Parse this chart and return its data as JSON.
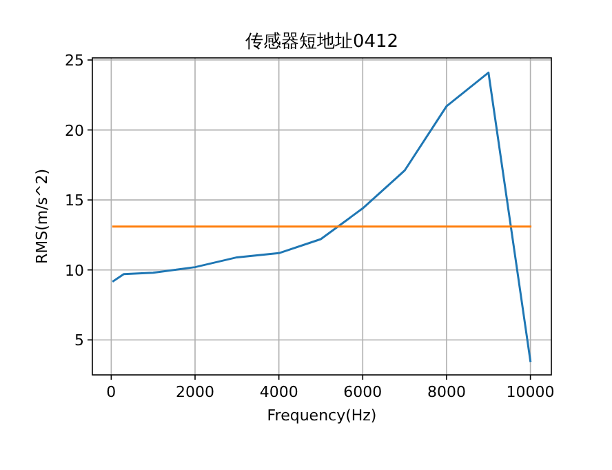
{
  "chart_data": {
    "type": "line",
    "title": "传感器短地址0412",
    "xlabel": "Frequency(Hz)",
    "ylabel": "RMS(m/s^2)",
    "series": [
      {
        "color": "#1f77b4",
        "x": [
          50,
          300,
          1000,
          2000,
          3000,
          4000,
          5000,
          6000,
          7000,
          8000,
          9000,
          10000
        ],
        "values": [
          9.2,
          9.7,
          9.8,
          10.2,
          10.9,
          11.2,
          12.2,
          14.4,
          17.1,
          21.7,
          24.1,
          3.5
        ]
      },
      {
        "color": "#ff7f0e",
        "x": [
          50,
          10000
        ],
        "values": [
          13.1,
          13.1
        ]
      }
    ],
    "xlim": [
      -450,
      10500
    ],
    "ylim": [
      2.5,
      25.15
    ],
    "xticks": [
      0,
      2000,
      4000,
      6000,
      8000,
      10000
    ],
    "yticks": [
      5,
      10,
      15,
      20,
      25
    ],
    "grid": true,
    "line_style": "solid",
    "marker": "none"
  }
}
